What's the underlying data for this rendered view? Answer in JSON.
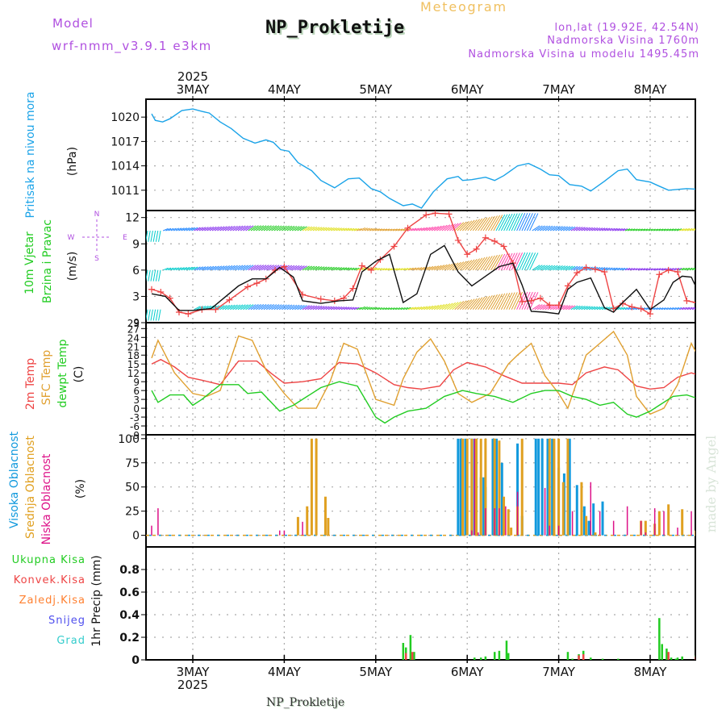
{
  "header": {
    "model_label": "Model",
    "model_name": "wrf-nmm_v3.9.1 e3km",
    "station_title": "NP_Prokletije",
    "chart_kind": "Meteogram",
    "lonlat": "lon,lat (19.92E, 42.54N)",
    "elevation": "Nadmorska Visina 1760m",
    "model_elevation": "Nadmorska Visina u modelu 1495.45m",
    "footer_station": "NP_Prokletije",
    "watermark": "made by Angel"
  },
  "colors": {
    "pressure": "#1aa3e8",
    "wind_label": "#11cc11",
    "temp2m": "#ee4444",
    "sfc_temp": "#e0a030",
    "dewpt": "#22cc22",
    "high_cloud": "#1199dd",
    "mid_cloud": "#e0a020",
    "low_cloud": "#dd1188",
    "model_text": "#b050e0",
    "meteogram_text": "#f0c060",
    "rain_total": "#22cc22",
    "rain_conv": "#ee4444",
    "freezing_rain": "#ff8030",
    "snow": "#5050ee",
    "hail": "#33cccc"
  },
  "chart_data": [
    {
      "type": "line",
      "title": "Pritisak na nivou mora",
      "ylabel": "(hPa)",
      "ylim": [
        1008.5,
        1022.2
      ],
      "yticks": [
        1011,
        1014,
        1017,
        1020
      ],
      "x_day_labels": [
        "3MAY",
        "4MAY",
        "5MAY",
        "6MAY",
        "7MAY",
        "8MAY"
      ],
      "x_year_label": "2025",
      "x_range_days": [
        0,
        5.6
      ],
      "series": [
        {
          "name": "Pritisak na nivou mora",
          "color": "#1aa3e8",
          "x": [
            -0.45,
            -0.41,
            -0.33,
            -0.25,
            -0.12,
            0,
            0.1,
            0.18,
            0.3,
            0.42,
            0.55,
            0.68,
            0.8,
            0.88,
            0.96,
            1.05,
            1.15,
            1.3,
            1.4,
            1.55,
            1.7,
            1.82,
            1.95,
            2.05,
            2.15,
            2.3,
            2.4,
            2.5,
            2.63,
            2.78,
            2.9,
            2.95,
            3.05,
            3.2,
            3.3,
            3.4,
            3.55,
            3.67,
            3.8,
            3.9,
            4.0,
            4.12,
            4.25,
            4.35,
            4.5,
            4.65,
            4.75,
            4.85,
            5.0,
            5.1,
            5.2,
            5.3,
            5.4,
            5.55
          ],
          "y": [
            1020.4,
            1019.6,
            1019.4,
            1019.8,
            1020.8,
            1021.0,
            1020.7,
            1020.5,
            1019.4,
            1018.6,
            1017.4,
            1016.8,
            1017.2,
            1016.9,
            1016.0,
            1015.8,
            1014.4,
            1013.4,
            1012.2,
            1011.3,
            1012.4,
            1012.5,
            1011.2,
            1010.8,
            1010.0,
            1009.1,
            1009.3,
            1008.8,
            1010.8,
            1012.4,
            1012.7,
            1012.2,
            1012.3,
            1012.6,
            1012.2,
            1012.8,
            1014.0,
            1014.3,
            1013.6,
            1012.9,
            1012.8,
            1011.7,
            1011.5,
            1010.9,
            1012.1,
            1013.4,
            1013.6,
            1012.3,
            1012.0,
            1011.5,
            1011.0,
            1011.1,
            1011.2,
            1011.1
          ]
        }
      ]
    },
    {
      "type": "line",
      "title": "10m Vjetar Brzina i Pravac",
      "ylabel": "(m/s)",
      "ylim": [
        0,
        12.8
      ],
      "yticks": [
        3,
        6,
        9,
        12
      ],
      "ytick_extra_bottom": "9",
      "compass": {
        "n": "N",
        "s": "S",
        "w": "W",
        "e": "E"
      },
      "series": [
        {
          "name": "Wind speed (plus markers)",
          "color": "#ee4444",
          "x": [
            -0.45,
            -0.35,
            -0.25,
            -0.15,
            -0.05,
            0.1,
            0.25,
            0.4,
            0.6,
            0.7,
            0.8,
            0.9,
            1.0,
            1.2,
            1.4,
            1.55,
            1.65,
            1.75,
            1.85,
            1.95,
            2.05,
            2.2,
            2.35,
            2.55,
            2.65,
            2.8,
            2.9,
            3.0,
            3.1,
            3.2,
            3.3,
            3.4,
            3.5,
            3.6,
            3.7,
            3.8,
            3.9,
            4.0,
            4.1,
            4.2,
            4.3,
            4.4,
            4.5,
            4.6,
            4.7,
            4.8,
            4.9,
            5.0,
            5.1,
            5.2,
            5.3,
            5.4,
            5.5
          ],
          "y": [
            3.8,
            3.5,
            2.8,
            1.2,
            1.0,
            1.5,
            1.5,
            2.6,
            4.1,
            4.5,
            5.0,
            6.0,
            6.4,
            3.2,
            2.7,
            2.5,
            2.8,
            3.9,
            6.5,
            6.0,
            7.2,
            8.7,
            10.8,
            12.3,
            12.5,
            12.4,
            9.4,
            7.8,
            8.4,
            9.7,
            9.3,
            8.7,
            6.8,
            2.4,
            2.5,
            2.8,
            2.0,
            2.0,
            4.2,
            5.7,
            6.3,
            6.1,
            5.8,
            1.6,
            2.2,
            1.8,
            1.6,
            1.0,
            5.5,
            6.0,
            5.8,
            2.5,
            2.3
          ]
        },
        {
          "name": "Wind speed (smoothed)",
          "color": "#111111",
          "x": [
            -0.45,
            -0.3,
            -0.15,
            0,
            0.2,
            0.5,
            0.65,
            0.8,
            0.95,
            1.1,
            1.2,
            1.4,
            1.6,
            1.75,
            1.85,
            2.0,
            2.15,
            2.3,
            2.45,
            2.6,
            2.75,
            2.9,
            3.05,
            3.2,
            3.35,
            3.5,
            3.6,
            3.7,
            3.85,
            4.0,
            4.1,
            4.2,
            4.35,
            4.5,
            4.6,
            4.7,
            4.85,
            5.0,
            5.15,
            5.25,
            5.35,
            5.45,
            5.55
          ],
          "y": [
            3.3,
            3.0,
            1.4,
            1.4,
            1.6,
            4.2,
            5.0,
            5.0,
            6.3,
            5.2,
            2.5,
            2.2,
            2.5,
            2.6,
            5.8,
            7.0,
            7.8,
            2.3,
            3.3,
            7.8,
            8.8,
            5.8,
            4.2,
            5.3,
            6.4,
            6.8,
            4.3,
            1.3,
            1.2,
            1.0,
            3.8,
            4.6,
            5.1,
            1.7,
            1.2,
            2.3,
            3.8,
            1.5,
            2.6,
            4.6,
            5.3,
            5.2,
            3.0
          ]
        }
      ],
      "barb_rows_ms": [
        1.5,
        6.0,
        10.5
      ],
      "barb_color_scale": [
        "#00cccc",
        "#2288ff",
        "#8833ee",
        "#22cc22",
        "#e0e020",
        "#e0a030",
        "#ff44aa"
      ]
    },
    {
      "type": "line",
      "title": "2m Temp / SFC Temp / dewpt Temp",
      "ylabel": "(C)",
      "ylim": [
        -9,
        29
      ],
      "yticks": [
        -9,
        -6,
        -3,
        0,
        3,
        6,
        9,
        12,
        15,
        18,
        21,
        24,
        27,
        29
      ],
      "ytick_labels": [
        "-9",
        "-6",
        "-3",
        "0",
        "3",
        "6",
        "9",
        "12",
        "15",
        "18",
        "21",
        "24",
        "27",
        "29"
      ],
      "series": [
        {
          "name": "2m Temp",
          "color": "#ee4444",
          "x": [
            -0.45,
            -0.35,
            -0.2,
            -0.05,
            0.1,
            0.3,
            0.5,
            0.7,
            0.85,
            1.0,
            1.2,
            1.4,
            1.6,
            1.8,
            2.0,
            2.2,
            2.35,
            2.5,
            2.7,
            2.85,
            3.0,
            3.2,
            3.4,
            3.6,
            3.8,
            4.0,
            4.15,
            4.3,
            4.5,
            4.65,
            4.85,
            5.0,
            5.15,
            5.3,
            5.45,
            5.55
          ],
          "y": [
            15,
            16.5,
            14,
            10.5,
            9.5,
            8,
            16,
            16,
            12,
            8.5,
            9,
            10,
            15.5,
            15,
            12,
            8,
            7,
            6.5,
            7.5,
            13,
            15.5,
            14,
            11,
            8.5,
            8.5,
            8.5,
            8,
            12,
            14,
            13,
            7.5,
            6.5,
            7,
            10.5,
            12,
            11
          ]
        },
        {
          "name": "SFC Temp",
          "color": "#e0a030",
          "x": [
            -0.45,
            -0.38,
            -0.2,
            0,
            0.15,
            0.3,
            0.5,
            0.65,
            0.8,
            1.0,
            1.15,
            1.35,
            1.5,
            1.65,
            1.8,
            2.0,
            2.2,
            2.3,
            2.45,
            2.6,
            2.75,
            2.9,
            3.05,
            3.25,
            3.45,
            3.55,
            3.7,
            3.85,
            4.0,
            4.1,
            4.3,
            4.45,
            4.6,
            4.75,
            4.85,
            5.0,
            5.15,
            5.3,
            5.45,
            5.55
          ],
          "y": [
            17,
            23,
            12,
            5,
            4,
            6,
            24.5,
            23,
            13,
            5,
            0,
            0,
            9,
            22,
            20,
            3,
            1,
            10,
            19,
            23.5,
            16,
            5,
            2,
            5,
            15,
            18,
            22,
            11,
            5,
            0,
            18,
            22,
            26,
            18,
            4,
            -2,
            0,
            8,
            22,
            16
          ]
        },
        {
          "name": "dewpt Temp",
          "color": "#22cc22",
          "x": [
            -0.45,
            -0.38,
            -0.25,
            -0.1,
            0,
            0.1,
            0.3,
            0.5,
            0.6,
            0.75,
            0.95,
            1.1,
            1.25,
            1.4,
            1.6,
            1.8,
            2.0,
            2.1,
            2.2,
            2.35,
            2.55,
            2.75,
            2.95,
            3.1,
            3.3,
            3.5,
            3.7,
            3.85,
            4.0,
            4.15,
            4.3,
            4.45,
            4.6,
            4.75,
            4.85,
            5.0,
            5.1,
            5.25,
            5.4,
            5.5,
            5.55
          ],
          "y": [
            6,
            2,
            4.5,
            4.5,
            1,
            3,
            8,
            8,
            5,
            5.5,
            -1,
            1,
            4,
            7,
            9,
            7.5,
            -3,
            -5,
            -3,
            -1,
            0,
            4,
            6,
            5,
            4,
            2,
            5,
            6,
            6,
            4,
            3,
            1,
            2,
            -2,
            -3,
            -1,
            1,
            4,
            4.5,
            3.5,
            3
          ]
        }
      ]
    },
    {
      "type": "bar",
      "title": "Oblacnost",
      "ylabel": "(%)",
      "ylim": [
        -12,
        104
      ],
      "yticks": [
        0,
        25,
        50,
        75,
        100
      ],
      "series": [
        {
          "name": "Visoka Oblacnost",
          "color": "#1199dd",
          "x": [
            2.9,
            2.93,
            2.98,
            3.05,
            3.08,
            3.15,
            3.18,
            3.2,
            3.28,
            3.32,
            3.38,
            3.55,
            3.6,
            3.75,
            3.78,
            3.82,
            3.88,
            3.93,
            4.0,
            4.06,
            4.12,
            4.2,
            4.28,
            4.33,
            4.38,
            4.48,
            4.55
          ],
          "y": [
            100,
            100,
            100,
            100,
            100,
            60,
            60,
            50,
            100,
            100,
            75,
            95,
            20,
            100,
            100,
            100,
            100,
            100,
            70,
            64,
            100,
            52,
            30,
            15,
            33,
            35,
            0
          ]
        },
        {
          "name": "Srednja Oblacnost",
          "color": "#e0a020",
          "x": [
            1.15,
            1.25,
            1.3,
            1.35,
            1.45,
            1.48,
            2.95,
            3.0,
            3.05,
            3.1,
            3.15,
            3.2,
            3.3,
            3.35,
            3.4,
            3.45,
            3.48,
            3.55,
            3.6,
            3.9,
            3.95,
            4.0,
            4.05,
            4.1,
            4.25,
            4.3,
            4.4,
            4.9,
            4.95,
            5.05,
            5.1,
            5.2,
            5.35,
            5.5
          ],
          "y": [
            19,
            30,
            100,
            100,
            40,
            18,
            100,
            100,
            100,
            100,
            100,
            100,
            100,
            98,
            40,
            27,
            8,
            30,
            100,
            100,
            100,
            100,
            55,
            100,
            55,
            20,
            3,
            15,
            15,
            12,
            25,
            32,
            27,
            5
          ]
        },
        {
          "name": "Niska Oblacnost",
          "color": "#dd1188",
          "x": [
            -0.45,
            -0.38,
            0.95,
            1.0,
            1.2,
            3.05,
            3.08,
            3.12,
            3.2,
            3.3,
            3.35,
            3.42,
            3.55,
            3.85,
            3.9,
            4.0,
            4.15,
            4.35,
            4.45,
            4.6,
            4.75,
            4.9,
            4.95,
            5.05,
            5.15,
            5.3,
            5.45
          ],
          "y": [
            10,
            28,
            5,
            5,
            14,
            5,
            100,
            3,
            28,
            28,
            28,
            30,
            45,
            49,
            10,
            10,
            25,
            55,
            25,
            15,
            30,
            15,
            3,
            28,
            25,
            8,
            25
          ]
        }
      ]
    },
    {
      "type": "bar",
      "title": "1hr Precip",
      "ylabel": "1hr Precip (mm)",
      "ylim": [
        0,
        1.0
      ],
      "yticks": [
        0,
        0.2,
        0.4,
        0.6,
        0.8
      ],
      "ytick_labels": [
        "0",
        "0.2",
        "0.4",
        "0.6",
        "0.8"
      ],
      "legend": [
        "Ukupna Kisa",
        "Konvek.Kisa",
        "Zaledj.Kisa",
        "Snijeg",
        "Grad"
      ],
      "series": [
        {
          "name": "Ukupna Kisa",
          "color": "#22cc22",
          "x": [
            2.3,
            2.33,
            2.38,
            2.42,
            3.08,
            3.15,
            3.2,
            3.3,
            3.35,
            3.43,
            3.45,
            4.1,
            4.15,
            4.22,
            4.27,
            4.35,
            4.48,
            4.65,
            5.1,
            5.13,
            5.18,
            5.23,
            5.28,
            5.3,
            5.35,
            5.5,
            5.55
          ],
          "y": [
            0.15,
            0.11,
            0.22,
            0.07,
            0.02,
            0.02,
            0.03,
            0.07,
            0.08,
            0.17,
            0.06,
            0.07,
            0.01,
            0.05,
            0.08,
            0.02,
            0.01,
            0.01,
            0.37,
            0.14,
            0.1,
            0.02,
            0.01,
            0.02,
            0.03,
            0.04,
            0.4
          ]
        },
        {
          "name": "Konvek.Kisa",
          "color": "#ee4444",
          "x": [
            2.33,
            2.4,
            4.22,
            4.27,
            5.2,
            5.5,
            5.55
          ],
          "y": [
            0.06,
            0.07,
            0.04,
            0.05,
            0.07,
            0.03,
            0.12
          ]
        }
      ]
    }
  ]
}
